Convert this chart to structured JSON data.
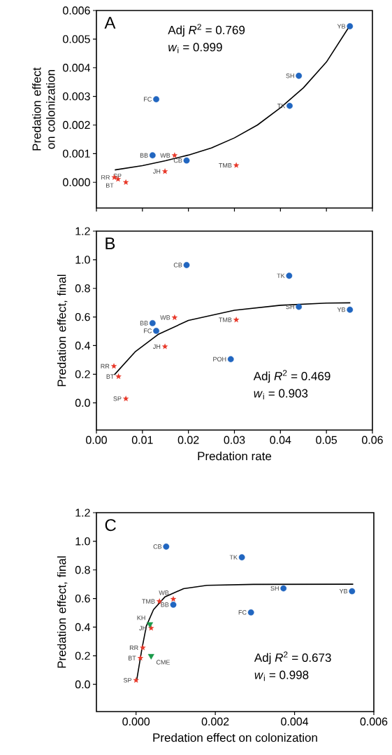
{
  "chart_data": [
    {
      "type": "scatter",
      "ylabel": "Predation effect on colonization",
      "xlim": [
        0,
        0.06
      ],
      "ylim": [
        -0.0009,
        0.006
      ],
      "xticks": [
        {
          "value": 0,
          "label": null
        },
        {
          "value": 0.01,
          "label": null
        },
        {
          "value": 0.02,
          "label": null
        },
        {
          "value": 0.03,
          "label": null
        },
        {
          "value": 0.04,
          "label": null
        },
        {
          "value": 0.05,
          "label": null
        },
        {
          "value": 0.06,
          "label": null
        }
      ],
      "yticks": [
        {
          "value": 0,
          "label": "0.000"
        },
        {
          "value": 0.001,
          "label": "0.001"
        },
        {
          "value": 0.002,
          "label": "0.002"
        },
        {
          "value": 0.003,
          "label": "0.003"
        },
        {
          "value": 0.004,
          "label": "0.004"
        },
        {
          "value": 0.005,
          "label": "0.005"
        },
        {
          "value": 0.006,
          "label": "0.006"
        }
      ],
      "tick_labels": "y",
      "series": [
        {
          "color": "#2166c0",
          "marker": "circle",
          "x": [
            0.0122,
            0.0196,
            0.013,
            0.042,
            0.044,
            0.0551
          ],
          "values": [
            0.00094,
            0.00076,
            0.0029,
            0.00267,
            0.00372,
            0.00545
          ]
        },
        {
          "color": "#e8392a",
          "marker": "star",
          "x": [
            0.0039,
            0.0047,
            0.0064,
            0.0149,
            0.017,
            0.0304
          ],
          "values": [
            0.00017,
            0.00011,
            0.0,
            0.00038,
            0.00094,
            0.00059
          ]
        },
        {
          "type": "line",
          "color": "#000000",
          "marker": "none",
          "x": [
            0.004,
            0.01,
            0.015,
            0.02,
            0.025,
            0.03,
            0.035,
            0.04,
            0.045,
            0.05,
            0.055
          ],
          "values": [
            0.00043,
            0.00058,
            0.00075,
            0.00095,
            0.0012,
            0.00155,
            0.002,
            0.0026,
            0.0033,
            0.0042,
            0.00545
          ]
        }
      ],
      "annotations": [
        "A",
        "Adj *R*$^{2}$ = 0.769",
        "*w*$_{i}$ = 0.999",
        {
          "text": "BB",
          "x": 0.0122,
          "y": 0.00094
        },
        {
          "text": "CB",
          "x": 0.0196,
          "y": 0.00076
        },
        {
          "text": "FC",
          "x": 0.013,
          "y": 0.0029
        },
        {
          "text": "TK",
          "x": 0.042,
          "y": 0.00267
        },
        {
          "text": "SH",
          "x": 0.044,
          "y": 0.00372
        },
        {
          "text": "YB",
          "x": 0.0551,
          "y": 0.00545
        },
        {
          "text": "RR",
          "x": 0.0039,
          "y": 0.00017
        },
        {
          "text": "BT",
          "x": 0.0047,
          "y": 0.00011
        },
        {
          "text": "SP",
          "x": 0.0064,
          "y": 0.0
        },
        {
          "text": "JH",
          "x": 0.0149,
          "y": 0.00038
        },
        {
          "text": "WB",
          "x": 0.017,
          "y": 0.00094
        },
        {
          "text": "TMB",
          "x": 0.0304,
          "y": 0.00059
        }
      ]
    },
    {
      "type": "scatter",
      "xlabel": "Predation rate",
      "ylabel": "Predation effect, final",
      "xlim": [
        0,
        0.06
      ],
      "ylim": [
        -0.19,
        1.2
      ],
      "xticks": [
        {
          "value": 0,
          "label": "0.00"
        },
        {
          "value": 0.01,
          "label": "0.01"
        },
        {
          "value": 0.02,
          "label": "0.02"
        },
        {
          "value": 0.03,
          "label": "0.03"
        },
        {
          "value": 0.04,
          "label": "0.04"
        },
        {
          "value": 0.05,
          "label": "0.05"
        },
        {
          "value": 0.06,
          "label": "0.06"
        }
      ],
      "yticks": [
        {
          "value": 0,
          "label": "0.0"
        },
        {
          "value": 0.2,
          "label": "0.2"
        },
        {
          "value": 0.4,
          "label": "0.4"
        },
        {
          "value": 0.6,
          "label": "0.6"
        },
        {
          "value": 0.8,
          "label": "0.8"
        },
        {
          "value": 1.0,
          "label": "1.0"
        },
        {
          "value": 1.2,
          "label": "1.2"
        }
      ],
      "series": [
        {
          "color": "#2166c0",
          "marker": "circle",
          "x": [
            0.0196,
            0.0419,
            0.044,
            0.0551,
            0.0122,
            0.013,
            0.0292
          ],
          "values": [
            0.963,
            0.888,
            0.671,
            0.651,
            0.557,
            0.503,
            0.305
          ]
        },
        {
          "color": "#e8392a",
          "marker": "star",
          "x": [
            0.017,
            0.0304,
            0.0149,
            0.0038,
            0.0048,
            0.0064
          ],
          "values": [
            0.596,
            0.58,
            0.393,
            0.256,
            0.184,
            0.029
          ]
        },
        {
          "type": "line",
          "color": "#000000",
          "marker": "none",
          "x": [
            0.0039,
            0.0084,
            0.0134,
            0.02,
            0.03,
            0.04,
            0.05,
            0.0552
          ],
          "values": [
            0.196,
            0.356,
            0.478,
            0.576,
            0.647,
            0.682,
            0.697,
            0.699
          ]
        }
      ],
      "annotations": [
        "B",
        "Adj *R*$^{2}$ = 0.469",
        "*w*$_{i}$ = 0.903",
        {
          "text": "CB",
          "x": 0.0196,
          "y": 0.963
        },
        {
          "text": "TK",
          "x": 0.0419,
          "y": 0.888
        },
        {
          "text": "SH",
          "x": 0.044,
          "y": 0.671
        },
        {
          "text": "YB",
          "x": 0.0551,
          "y": 0.651
        },
        {
          "text": "BB",
          "x": 0.0122,
          "y": 0.557
        },
        {
          "text": "FC",
          "x": 0.013,
          "y": 0.503
        },
        {
          "text": "POH",
          "x": 0.0292,
          "y": 0.305
        },
        {
          "text": "WB",
          "x": 0.017,
          "y": 0.596
        },
        {
          "text": "TMB",
          "x": 0.0304,
          "y": 0.58
        },
        {
          "text": "JH",
          "x": 0.0149,
          "y": 0.393
        },
        {
          "text": "RR",
          "x": 0.0038,
          "y": 0.256
        },
        {
          "text": "BT",
          "x": 0.0048,
          "y": 0.184
        },
        {
          "text": "SP",
          "x": 0.0064,
          "y": 0.029
        }
      ]
    },
    {
      "type": "scatter",
      "xlabel": "Predation effect on colonization",
      "ylabel": "Predation effect, final",
      "xlim": [
        -0.001,
        0.006
      ],
      "ylim": [
        -0.19,
        1.2
      ],
      "xticks": [
        {
          "value": 0,
          "label": "0.000"
        },
        {
          "value": 0.002,
          "label": "0.002"
        },
        {
          "value": 0.004,
          "label": "0.004"
        },
        {
          "value": 0.006,
          "label": "0.006"
        }
      ],
      "yticks": [
        {
          "value": 0,
          "label": "0.0"
        },
        {
          "value": 0.2,
          "label": "0.2"
        },
        {
          "value": 0.4,
          "label": "0.4"
        },
        {
          "value": 0.6,
          "label": "0.6"
        },
        {
          "value": 0.8,
          "label": "0.8"
        },
        {
          "value": 1.0,
          "label": "1.0"
        },
        {
          "value": 1.2,
          "label": "1.2"
        }
      ],
      "series": [
        {
          "color": "#2166c0",
          "marker": "circle",
          "x": [
            0.00076,
            0.00267,
            0.00372,
            0.00545,
            0.0029,
            0.00094
          ],
          "values": [
            0.963,
            0.888,
            0.671,
            0.651,
            0.503,
            0.557
          ]
        },
        {
          "color": "#e8392a",
          "marker": "star",
          "x": [
            0.00094,
            0.00059,
            0.00038,
            0.00017,
            0.00011,
            0.0
          ],
          "values": [
            0.596,
            0.58,
            0.393,
            0.256,
            0.184,
            0.029
          ]
        },
        {
          "color": "#1a9a4a",
          "marker": "triangle",
          "x": [
            0.00035,
            0.00038
          ],
          "values": [
            0.421,
            0.199
          ]
        },
        {
          "type": "line",
          "color": "#000000",
          "marker": "none",
          "x": [
            2e-05,
            0.000146,
            0.00026,
            0.00044,
            0.00073,
            0.0012,
            0.00179,
            0.00296,
            0.00548
          ],
          "values": [
            0.036,
            0.245,
            0.408,
            0.522,
            0.612,
            0.669,
            0.692,
            0.699,
            0.7
          ]
        }
      ],
      "annotations": [
        "C",
        "Adj *R*$^{2}$ = 0.673",
        "*w*$_{i}$ = 0.998",
        {
          "text": "CB",
          "x": 0.00076,
          "y": 0.963
        },
        {
          "text": "TK",
          "x": 0.00267,
          "y": 0.888
        },
        {
          "text": "SH",
          "x": 0.00372,
          "y": 0.671
        },
        {
          "text": "YB",
          "x": 0.00545,
          "y": 0.651
        },
        {
          "text": "FC",
          "x": 0.0029,
          "y": 0.503
        },
        {
          "text": "BB",
          "x": 0.00094,
          "y": 0.557
        },
        {
          "text": "WB",
          "x": 0.00094,
          "y": 0.596
        },
        {
          "text": "TMB",
          "x": 0.00059,
          "y": 0.58
        },
        {
          "text": "JH",
          "x": 0.00038,
          "y": 0.393
        },
        {
          "text": "RR",
          "x": 0.00017,
          "y": 0.256
        },
        {
          "text": "BT",
          "x": 0.00011,
          "y": 0.184
        },
        {
          "text": "SP",
          "x": 0.0,
          "y": 0.029
        },
        {
          "text": "KH",
          "x": 0.00035,
          "y": 0.421
        },
        {
          "text": "CME",
          "x": 0.00038,
          "y": 0.199
        }
      ]
    }
  ]
}
